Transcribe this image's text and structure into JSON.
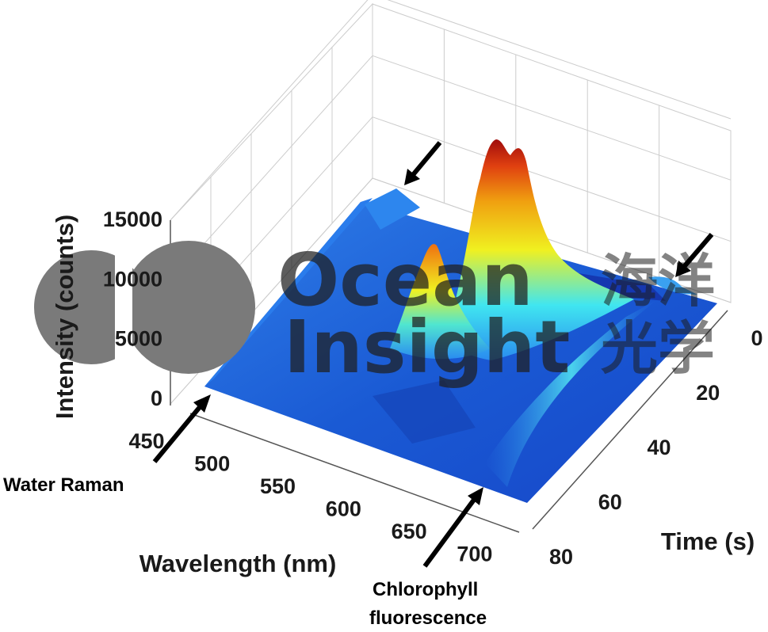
{
  "chart_data": {
    "type": "surface3d",
    "title": "",
    "xlabel": "Wavelength (nm)",
    "ylabel": "Time (s)",
    "zlabel": "Intensity (counts)",
    "xlim": [
      450,
      720
    ],
    "ylim": [
      0,
      80
    ],
    "zlim": [
      0,
      15000
    ],
    "x_ticks": [
      "450",
      "500",
      "550",
      "600",
      "650",
      "700"
    ],
    "y_ticks": [
      "0",
      "20",
      "40",
      "60",
      "80"
    ],
    "z_ticks": [
      "0",
      "5000",
      "10000",
      "15000"
    ],
    "grid": true,
    "colormap": "jet",
    "series": [
      {
        "x": 455,
        "time": 0,
        "intensity": 1800
      },
      {
        "x": 520,
        "time": 40,
        "intensity": 1500
      },
      {
        "x": 600,
        "time": 40,
        "intensity": 600
      },
      {
        "x": 685,
        "time": 40,
        "intensity": 2500
      },
      {
        "x": 700,
        "time": 5,
        "intensity": 1500
      }
    ],
    "peaks": [
      {
        "wavelength": 683,
        "time": 12,
        "intensity": 15500
      },
      {
        "wavelength": 683,
        "time": 38,
        "intensity": 9000
      }
    ],
    "annotations": [
      {
        "id": "water-raman",
        "text": "Water Raman"
      },
      {
        "id": "chlorophyll-1",
        "text": "Chlorophyll"
      },
      {
        "id": "chlorophyll-2",
        "text": "fluorescence"
      }
    ]
  },
  "watermark": {
    "line1": "Ocean",
    "line2": "Insight",
    "cn1": "海洋",
    "cn2": "光学",
    "color": "#1e1e1e"
  },
  "colors": {
    "low": "#1646c8",
    "mid": "#2a8cf0",
    "cyan": "#40e6f0",
    "yellow": "#f0f020",
    "orange": "#f08010",
    "red": "#b01010",
    "grid": "#cccccc"
  }
}
